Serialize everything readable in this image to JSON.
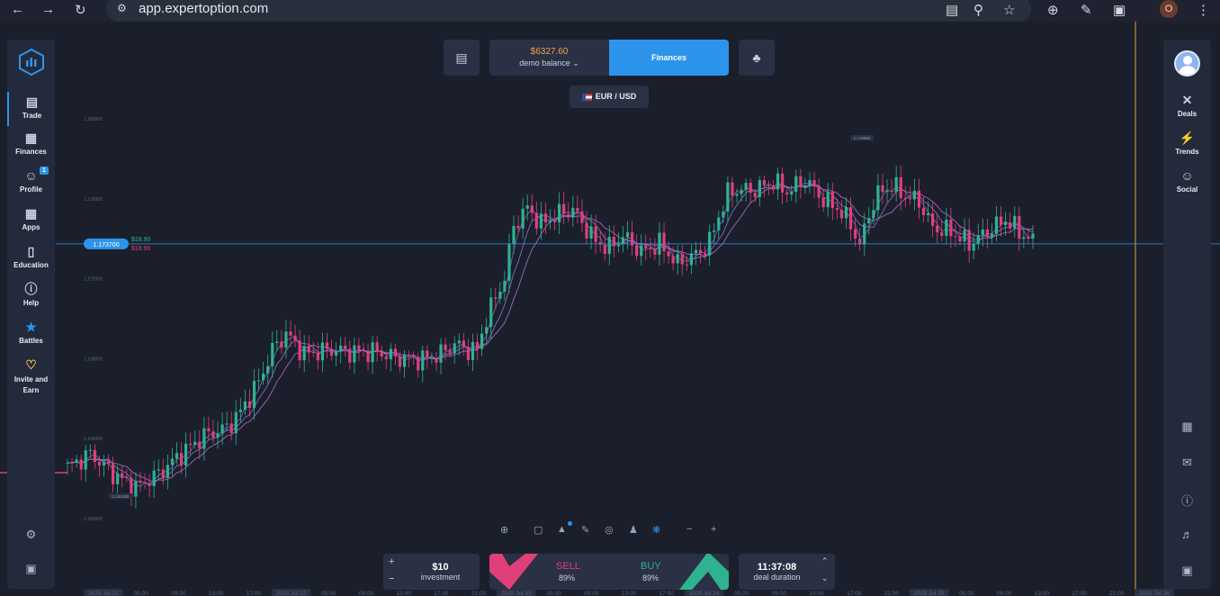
{
  "browser": {
    "url": "app.expertoption.com",
    "profile_initial": "O",
    "icons": [
      "back-icon",
      "forward-icon",
      "reload-icon",
      "site-info-icon",
      "install-icon",
      "zoom-icon",
      "star-icon",
      "add-icon",
      "eyedropper-icon",
      "extensions-icon",
      "menu-icon"
    ]
  },
  "left_nav": {
    "items": [
      {
        "label": "Trade",
        "icon": "chart-icon",
        "active": true
      },
      {
        "label": "Finances",
        "icon": "finances-icon"
      },
      {
        "label": "Profile",
        "icon": "profile-icon",
        "badge": "1"
      },
      {
        "label": "Apps",
        "icon": "apps-icon"
      },
      {
        "label": "Education",
        "icon": "education-icon"
      },
      {
        "label": "Help",
        "icon": "help-icon"
      },
      {
        "label": "Battles",
        "icon": "trophy-icon"
      },
      {
        "label": "Invite and",
        "label2": "Earn",
        "icon": "heart-icon"
      }
    ]
  },
  "right_nav": {
    "items": [
      {
        "label": "Deals",
        "icon": "deals-icon"
      },
      {
        "label": "Trends",
        "icon": "lightning-icon"
      },
      {
        "label": "Social",
        "icon": "add-friend-icon"
      }
    ]
  },
  "header": {
    "balance_amount": "$6327.60",
    "balance_label": "demo balance",
    "finances_label": "Finances",
    "pair": "EUR / USD"
  },
  "chart_data": {
    "type": "candlestick",
    "symbol": "EUR / USD",
    "y_ticks": [
      "1.180000",
      "1.176000",
      "1.172000",
      "1.168000",
      "1.164000",
      "1.160000"
    ],
    "ylim": [
      1.16,
      1.18
    ],
    "current_price": "1.173700",
    "high_label": "1.178880",
    "low_label": "1.161460",
    "buy_payout_label": "$18.90",
    "sell_payout_label": "$18.90",
    "x_ticks": [
      "2025 Jul 21",
      "05:00",
      "09:00",
      "13:00",
      "17:00",
      "2025 Jul 22",
      "05:00",
      "09:00",
      "13:00",
      "17:00",
      "21:00",
      "2025 Jul 23",
      "05:00",
      "09:00",
      "13:00",
      "17:00",
      "2025 Jul 24",
      "05:00",
      "09:00",
      "13:00",
      "17:00",
      "21:00",
      "2025 Jul 25",
      "05:00",
      "09:00",
      "13:00",
      "17:00",
      "21:00",
      "2025 Jul 26"
    ],
    "close_path": [
      [
        0,
        1.1625
      ],
      [
        5,
        1.1632
      ],
      [
        10,
        1.1622
      ],
      [
        15,
        1.1615
      ],
      [
        20,
        1.1622
      ],
      [
        25,
        1.1632
      ],
      [
        30,
        1.1641
      ],
      [
        35,
        1.1645
      ],
      [
        38,
        1.1653
      ],
      [
        42,
        1.1668
      ],
      [
        45,
        1.1684
      ],
      [
        48,
        1.1692
      ],
      [
        52,
        1.1682
      ],
      [
        58,
        1.1684
      ],
      [
        62,
        1.1683
      ],
      [
        68,
        1.1683
      ],
      [
        72,
        1.168
      ],
      [
        78,
        1.1679
      ],
      [
        82,
        1.1682
      ],
      [
        85,
        1.1687
      ],
      [
        88,
        1.1684
      ],
      [
        90,
        1.1684
      ],
      [
        92,
        1.17
      ],
      [
        96,
        1.172
      ],
      [
        98,
        1.1746
      ],
      [
        101,
        1.1755
      ],
      [
        104,
        1.1747
      ],
      [
        108,
        1.1752
      ],
      [
        111,
        1.1754
      ],
      [
        116,
        1.1738
      ],
      [
        119,
        1.1735
      ],
      [
        122,
        1.1741
      ],
      [
        126,
        1.1733
      ],
      [
        130,
        1.1737
      ],
      [
        134,
        1.1727
      ],
      [
        139,
        1.1733
      ],
      [
        141,
        1.1738
      ],
      [
        143,
        1.1751
      ],
      [
        145,
        1.1762
      ],
      [
        147,
        1.1764
      ],
      [
        151,
        1.1764
      ],
      [
        155,
        1.1768
      ],
      [
        158,
        1.1763
      ],
      [
        162,
        1.1769
      ],
      [
        166,
        1.1759
      ],
      [
        169,
        1.1755
      ],
      [
        172,
        1.1747
      ],
      [
        174,
        1.1736
      ],
      [
        176,
        1.1752
      ],
      [
        178,
        1.1762
      ],
      [
        181,
        1.1766
      ],
      [
        184,
        1.1761
      ],
      [
        187,
        1.1758
      ],
      [
        190,
        1.1745
      ],
      [
        194,
        1.1743
      ],
      [
        198,
        1.1737
      ],
      [
        202,
        1.1743
      ],
      [
        206,
        1.1749
      ],
      [
        209,
        1.1743
      ],
      [
        212,
        1.1738
      ]
    ],
    "indicators": [
      "moving-average-fast",
      "moving-average-slow"
    ]
  },
  "tools": {
    "icons": [
      "crosshair-icon",
      "indicators-icon",
      "drawing-icon",
      "pencil-icon",
      "target-icon",
      "person-icon",
      "settings-asterisk-icon",
      "zoom-out-icon",
      "zoom-in-icon"
    ]
  },
  "trade": {
    "investment_value": "$10",
    "investment_label": "investment",
    "sell_label": "SELL",
    "sell_percent": "89%",
    "buy_label": "BUY",
    "buy_percent": "89%",
    "duration_value": "11:37:08",
    "duration_label": "deal duration"
  },
  "colors": {
    "bull": "#2eb28f",
    "bear": "#e03f79",
    "accent": "#2d94ec",
    "balance": "#f3a24a",
    "time_marker": "#d9a832"
  }
}
